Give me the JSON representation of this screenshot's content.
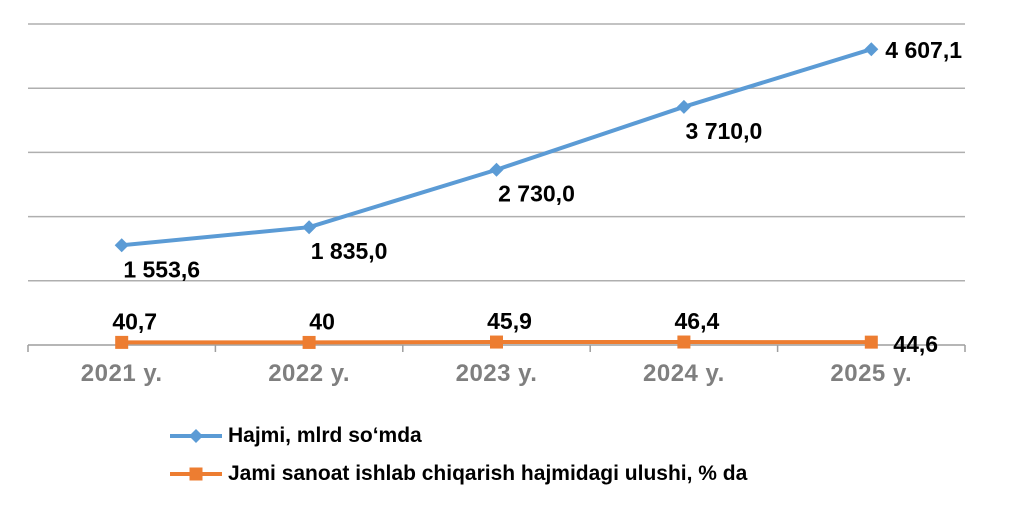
{
  "chart_data": {
    "type": "line",
    "categories": [
      "2021 y.",
      "2022 y.",
      "2023 y.",
      "2024 y.",
      "2025 y."
    ],
    "series": [
      {
        "name": "Hajmi, mlrd so‘mda",
        "color": "#5B9BD5",
        "marker": "diamond",
        "values": [
          1553.6,
          1835.0,
          2730.0,
          3710.0,
          4607.1
        ],
        "labels": [
          "1 553,6",
          "1 835,0",
          "2 730,0",
          "3 710,0",
          "4 607,1"
        ]
      },
      {
        "name": "Jami sanoat ishlab chiqarish hajmidagi ulushi, % da",
        "color": "#ED7D31",
        "marker": "square",
        "values": [
          40.7,
          40,
          45.9,
          46.4,
          44.6
        ],
        "labels": [
          "40,7",
          "40",
          "45,9",
          "46,4",
          "44,6"
        ]
      }
    ],
    "title": "",
    "xlabel": "",
    "ylabel": "",
    "ylim": [
      0,
      5000
    ],
    "y_gridline_step": 1000,
    "grid": true,
    "y_axis_labels_visible": false,
    "legend_position": "bottom-left",
    "colors": {
      "gridline": "#AFAFAF",
      "axis": "#9E9E9E",
      "x_label": "#7F7F7F",
      "data_label": "#000000",
      "background": "#FFFFFF"
    }
  }
}
